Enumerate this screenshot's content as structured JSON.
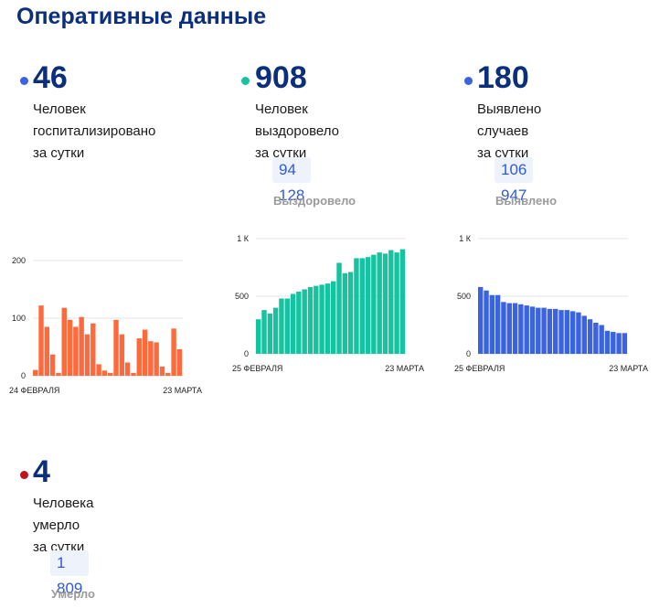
{
  "title": "Оперативные данные",
  "stats": {
    "hospitalized": {
      "value": "46",
      "desc1": "Человек",
      "desc2": "госпитализировано",
      "desc3": "за сутки",
      "color": "#3b63e0"
    },
    "recovered": {
      "value": "908",
      "desc1": "Человек выздоровело",
      "desc2": "за сутки",
      "total": "94 128",
      "total_label": "Выздоровело",
      "color": "#15c3a0"
    },
    "detected": {
      "value": "180",
      "desc1": "Выявлено случаев",
      "desc2": "за сутки",
      "total": "106 947",
      "total_label": "Выявлено",
      "color": "#3b63e0"
    },
    "deaths": {
      "value": "4",
      "desc1": "Человека умерло",
      "desc2": "за сутки",
      "total": "1 809",
      "total_label": "Умерло",
      "color": "#c0141c"
    }
  },
  "chart_data": [
    {
      "id": "hospitalized",
      "type": "bar",
      "color": "#ff6a3d",
      "ylim": [
        0,
        200
      ],
      "yticks": [
        "200",
        "100",
        "0"
      ],
      "x_start_label": "24 ФЕВРАЛЯ",
      "x_end_label": "23 МАРТА",
      "values": [
        10,
        122,
        85,
        37,
        5,
        118,
        97,
        85,
        102,
        72,
        91,
        20,
        9,
        5,
        97,
        72,
        23,
        5,
        65,
        80,
        60,
        58,
        16,
        5,
        82,
        46
      ]
    },
    {
      "id": "recovered",
      "type": "bar",
      "color": "#15c3a0",
      "ylim": [
        0,
        1000
      ],
      "yticks": [
        "1 К",
        "500",
        "0"
      ],
      "x_start_label": "25 ФЕВРАЛЯ",
      "x_end_label": "23 МАРТА",
      "values": [
        300,
        380,
        350,
        400,
        480,
        480,
        520,
        540,
        560,
        580,
        590,
        600,
        610,
        630,
        790,
        700,
        710,
        830,
        830,
        840,
        860,
        880,
        870,
        900,
        880,
        908
      ]
    },
    {
      "id": "detected",
      "type": "bar",
      "color": "#3b63e0",
      "ylim": [
        0,
        1000
      ],
      "yticks": [
        "1 К",
        "500",
        "0"
      ],
      "x_start_label": "25 ФЕВРАЛЯ",
      "x_end_label": "23 МАРТА",
      "values": [
        580,
        550,
        510,
        510,
        450,
        440,
        440,
        430,
        420,
        410,
        400,
        400,
        390,
        390,
        380,
        380,
        370,
        360,
        330,
        300,
        270,
        250,
        200,
        190,
        180,
        180
      ]
    }
  ]
}
